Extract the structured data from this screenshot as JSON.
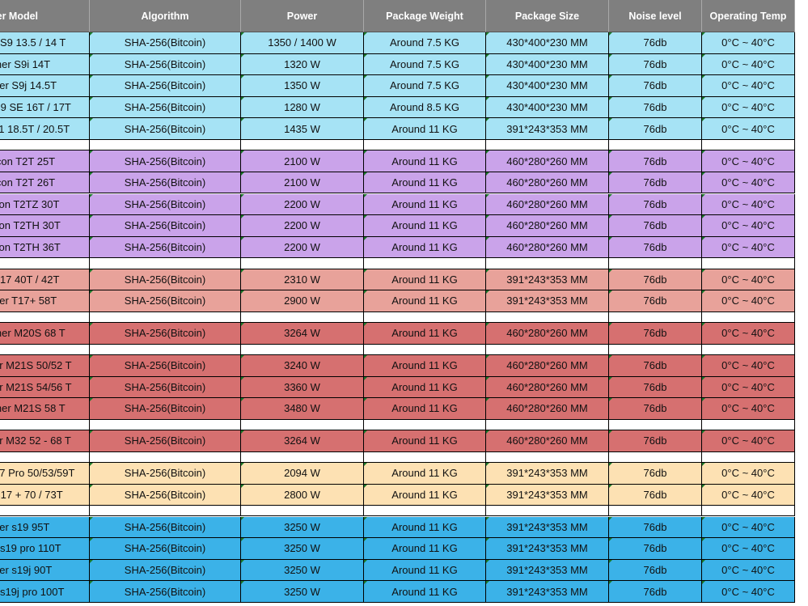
{
  "columns": [
    "ner Model",
    "Algorithm",
    "Power",
    "Package Weight",
    "Package Size",
    "Noise level",
    "Operating Temp"
  ],
  "colors": {
    "header": "#7f7f7f",
    "cyan_light": "#a6e3f5",
    "purple": "#caa3ea",
    "salmon": "#e8a29a",
    "red": "#d67070",
    "peach": "#fde1b3",
    "blue": "#3bb2e8"
  },
  "rows": [
    {
      "kind": "data",
      "color": "cyan_light",
      "cells": [
        "r S9 13.5 / 14 T",
        "SHA-256(Bitcoin)",
        "1350 / 1400 W",
        "Around 7.5 KG",
        "430*400*230 MM",
        "76db",
        "0°C ~ 40°C"
      ]
    },
    {
      "kind": "data",
      "color": "cyan_light",
      "cells": [
        "iner S9i 14T",
        "SHA-256(Bitcoin)",
        "1320 W",
        "Around 7.5 KG",
        "430*400*230 MM",
        "76db",
        "0°C ~ 40°C"
      ]
    },
    {
      "kind": "data",
      "color": "cyan_light",
      "cells": [
        "ner S9j 14.5T",
        "SHA-256(Bitcoin)",
        "1350 W",
        "Around 7.5 KG",
        "430*400*230 MM",
        "76db",
        "0°C ~ 40°C"
      ]
    },
    {
      "kind": "data",
      "color": "cyan_light",
      "cells": [
        "S9 SE 16T / 17T",
        "SHA-256(Bitcoin)",
        "1280 W",
        "Around 8.5 KG",
        "430*400*230 MM",
        "76db",
        "0°C ~ 40°C"
      ]
    },
    {
      "kind": "data",
      "color": "cyan_light",
      "cells": [
        "11 18.5T / 20.5T",
        "SHA-256(Bitcoin)",
        "1435 W",
        "Around 11 KG",
        "391*243*353 MM",
        "76db",
        "0°C ~ 40°C"
      ]
    },
    {
      "kind": "gap"
    },
    {
      "kind": "data",
      "color": "purple",
      "cells": [
        "icon T2T 25T",
        "SHA-256(Bitcoin)",
        "2100 W",
        "Around 11 KG",
        "460*280*260 MM",
        "76db",
        "0°C ~ 40°C"
      ]
    },
    {
      "kind": "data",
      "color": "purple",
      "cells": [
        "icon T2T 26T",
        "SHA-256(Bitcoin)",
        "2100 W",
        "Around 11 KG",
        "460*280*260 MM",
        "76db",
        "0°C ~ 40°C"
      ]
    },
    {
      "kind": "data",
      "color": "purple",
      "cells": [
        "con T2TZ 30T",
        "SHA-256(Bitcoin)",
        "2200 W",
        "Around 11 KG",
        "460*280*260 MM",
        "76db",
        "0°C ~ 40°C"
      ]
    },
    {
      "kind": "data",
      "color": "purple",
      "cells": [
        "con T2TH 30T",
        "SHA-256(Bitcoin)",
        "2200 W",
        "Around 11 KG",
        "460*280*260 MM",
        "76db",
        "0°C ~ 40°C"
      ]
    },
    {
      "kind": "data",
      "color": "purple",
      "cells": [
        "con T2TH 36T",
        "SHA-256(Bitcoin)",
        "2200 W",
        "Around 11 KG",
        "460*280*260 MM",
        "76db",
        "0°C ~ 40°C"
      ]
    },
    {
      "kind": "gap"
    },
    {
      "kind": "data",
      "color": "salmon",
      "cells": [
        "T17 40T / 42T",
        "SHA-256(Bitcoin)",
        "2310 W",
        "Around 11 KG",
        "391*243*353 MM",
        "76db",
        "0°C ~ 40°C"
      ]
    },
    {
      "kind": "data",
      "color": "salmon",
      "cells": [
        "ner T17+ 58T",
        "SHA-256(Bitcoin)",
        "2900 W",
        "Around 11 KG",
        "391*243*353 MM",
        "76db",
        "0°C ~ 40°C"
      ]
    },
    {
      "kind": "gap"
    },
    {
      "kind": "data",
      "color": "red",
      "cells": [
        "iner M20S 68 T",
        "SHA-256(Bitcoin)",
        "3264 W",
        "Around 11 KG",
        "460*280*260 MM",
        "76db",
        "0°C ~ 40°C"
      ]
    },
    {
      "kind": "gap"
    },
    {
      "kind": "data",
      "color": "red",
      "cells": [
        "er M21S 50/52 T",
        "SHA-256(Bitcoin)",
        "3240 W",
        "Around 11 KG",
        "460*280*260 MM",
        "76db",
        "0°C ~ 40°C"
      ]
    },
    {
      "kind": "data",
      "color": "red",
      "cells": [
        "er M21S 54/56 T",
        "SHA-256(Bitcoin)",
        "3360 W",
        "Around 11 KG",
        "460*280*260 MM",
        "76db",
        "0°C ~ 40°C"
      ]
    },
    {
      "kind": "data",
      "color": "red",
      "cells": [
        "iner M21S 58 T",
        "SHA-256(Bitcoin)",
        "3480 W",
        "Around 11 KG",
        "460*280*260 MM",
        "76db",
        "0°C ~ 40°C"
      ]
    },
    {
      "kind": "gap"
    },
    {
      "kind": "data",
      "color": "red",
      "cells": [
        "er M32 52 - 68 T",
        "SHA-256(Bitcoin)",
        "3264 W",
        "Around 11 KG",
        "460*280*260 MM",
        "76db",
        "0°C ~ 40°C"
      ]
    },
    {
      "kind": "gap"
    },
    {
      "kind": "data",
      "color": "peach",
      "cells": [
        "17 Pro 50/53/59T",
        "SHA-256(Bitcoin)",
        "2094 W",
        "Around 11 KG",
        "391*243*353 MM",
        "76db",
        "0°C ~ 40°C"
      ]
    },
    {
      "kind": "data",
      "color": "peach",
      "cells": [
        "S17 + 70 / 73T",
        "SHA-256(Bitcoin)",
        "2800 W",
        "Around 11 KG",
        "391*243*353 MM",
        "76db",
        "0°C ~ 40°C"
      ]
    },
    {
      "kind": "gap"
    },
    {
      "kind": "data",
      "color": "blue",
      "cells": [
        "ner s19 95T",
        "SHA-256(Bitcoin)",
        "3250 W",
        "Around 11 KG",
        "391*243*353 MM",
        "76db",
        "0°C ~ 40°C"
      ]
    },
    {
      "kind": "data",
      "color": "blue",
      "cells": [
        "r s19 pro 110T",
        "SHA-256(Bitcoin)",
        "3250 W",
        "Around 11 KG",
        "391*243*353 MM",
        "76db",
        "0°C ~ 40°C"
      ]
    },
    {
      "kind": "data",
      "color": "blue",
      "cells": [
        "ner s19j 90T",
        "SHA-256(Bitcoin)",
        "3250 W",
        "Around 11 KG",
        "391*243*353 MM",
        "76db",
        "0°C ~ 40°C"
      ]
    },
    {
      "kind": "data",
      "color": "blue",
      "cells": [
        "r s19j pro 100T",
        "SHA-256(Bitcoin)",
        "3250 W",
        "Around 11 KG",
        "391*243*353 MM",
        "76db",
        "0°C ~ 40°C"
      ]
    }
  ]
}
